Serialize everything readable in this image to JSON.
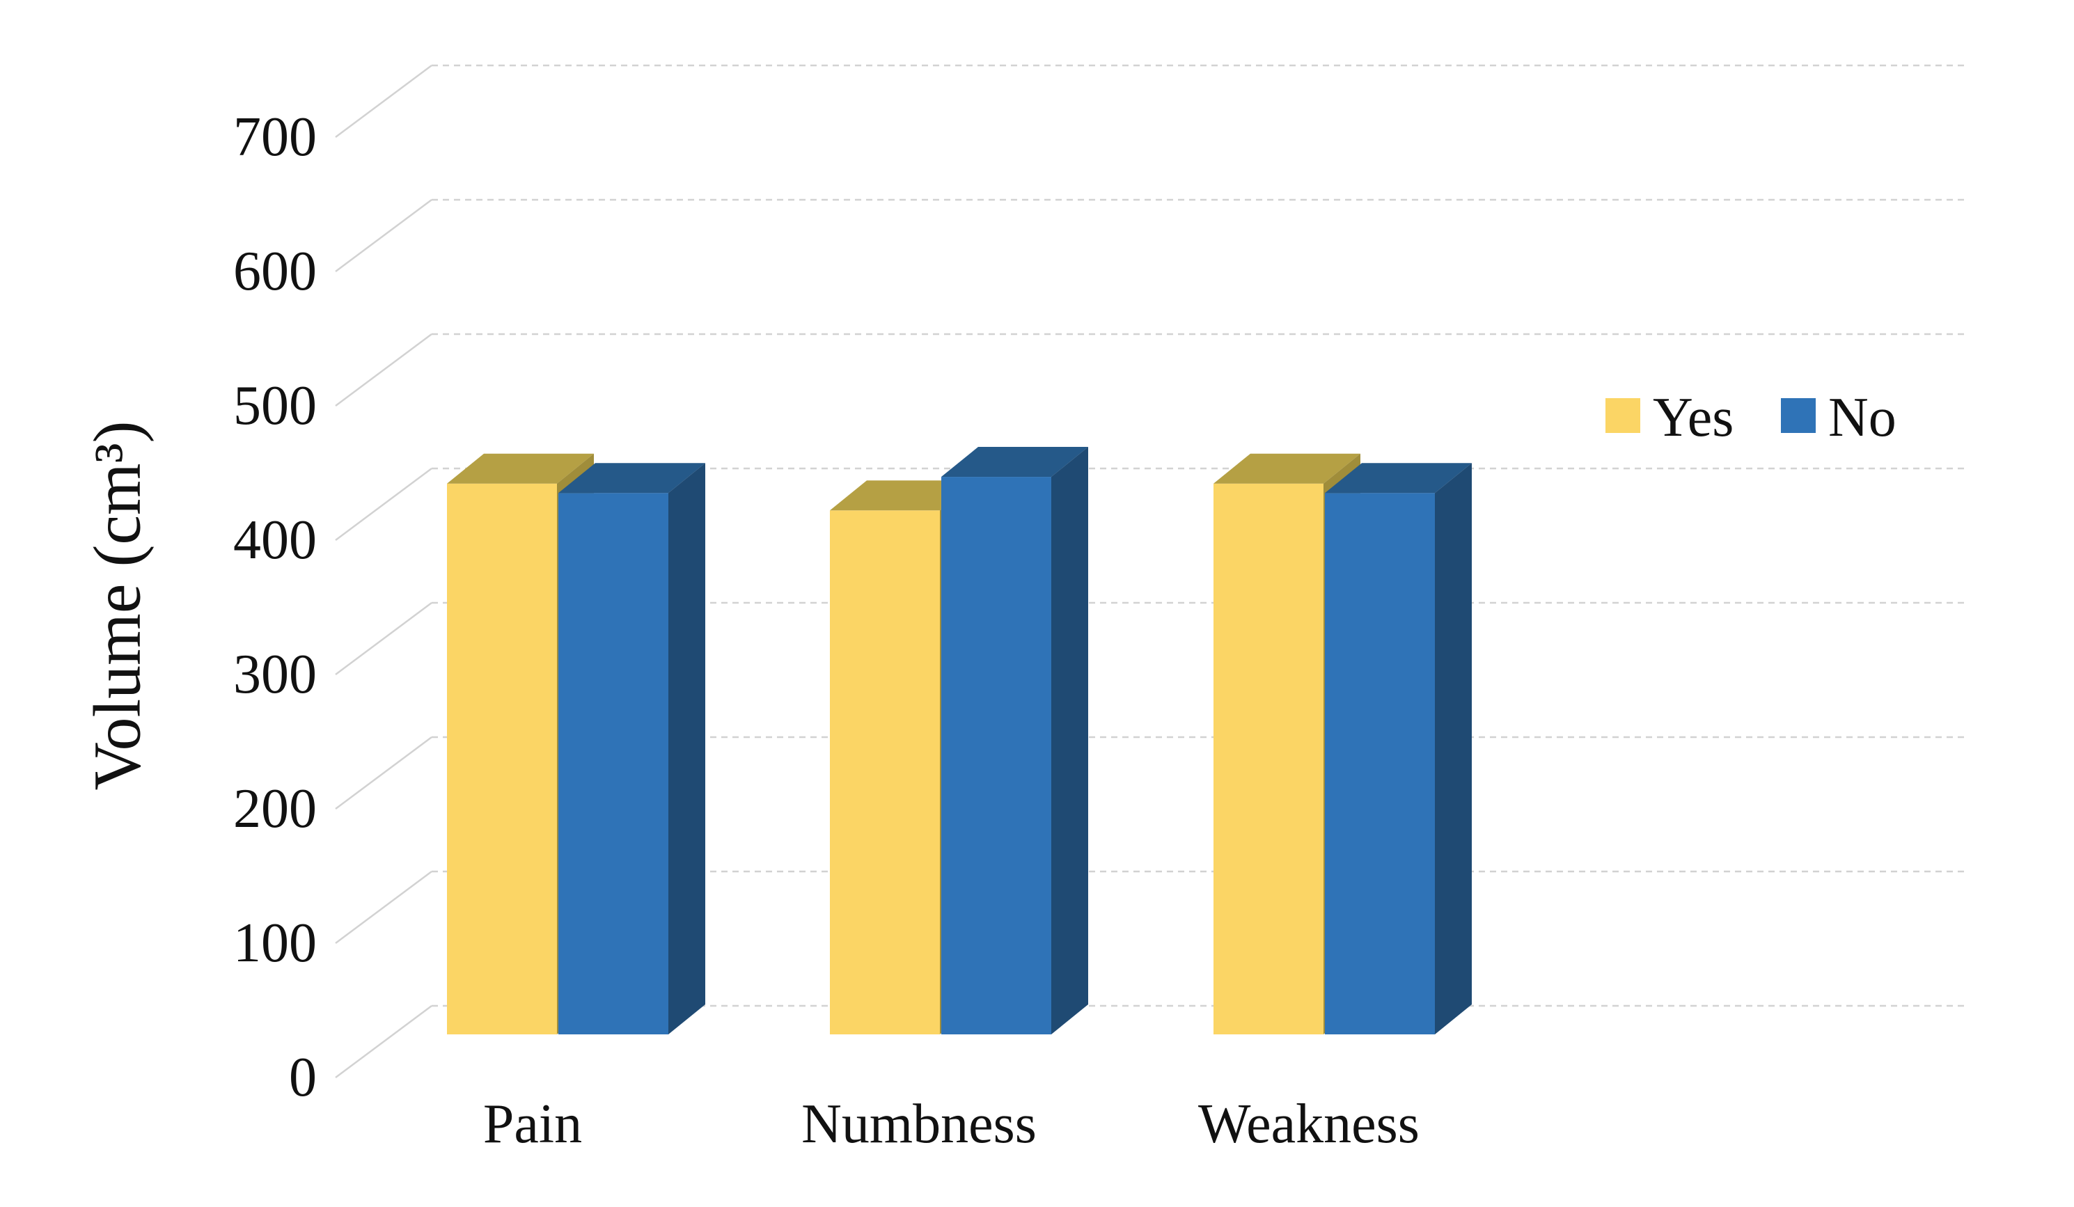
{
  "chart_data": {
    "type": "bar",
    "variant": "3d-clustered-column",
    "title": "",
    "categories": [
      "Pain",
      "Numbness",
      "Weakness"
    ],
    "series": [
      {
        "name": "Yes",
        "values": [
          410,
          390,
          410
        ],
        "color": "#FBD565",
        "top_color": "#B5A044",
        "side_color": "#A08D3A"
      },
      {
        "name": "No",
        "values": [
          403,
          415,
          403
        ],
        "color": "#2F73B7",
        "top_color": "#255989",
        "side_color": "#1F4A73"
      }
    ],
    "xlabel": "",
    "ylabel": "Volume (cm³)",
    "ylim": [
      0,
      700
    ],
    "ytick_step": 100,
    "yticks": [
      "0",
      "100",
      "200",
      "300",
      "400",
      "500",
      "600",
      "700"
    ],
    "grid": true,
    "gridline_color": "#D2D2D2",
    "legend_position": "upper-right",
    "legend_labels": [
      "Yes",
      "No"
    ],
    "text_color": "#111111",
    "background": "#FFFFFF"
  }
}
